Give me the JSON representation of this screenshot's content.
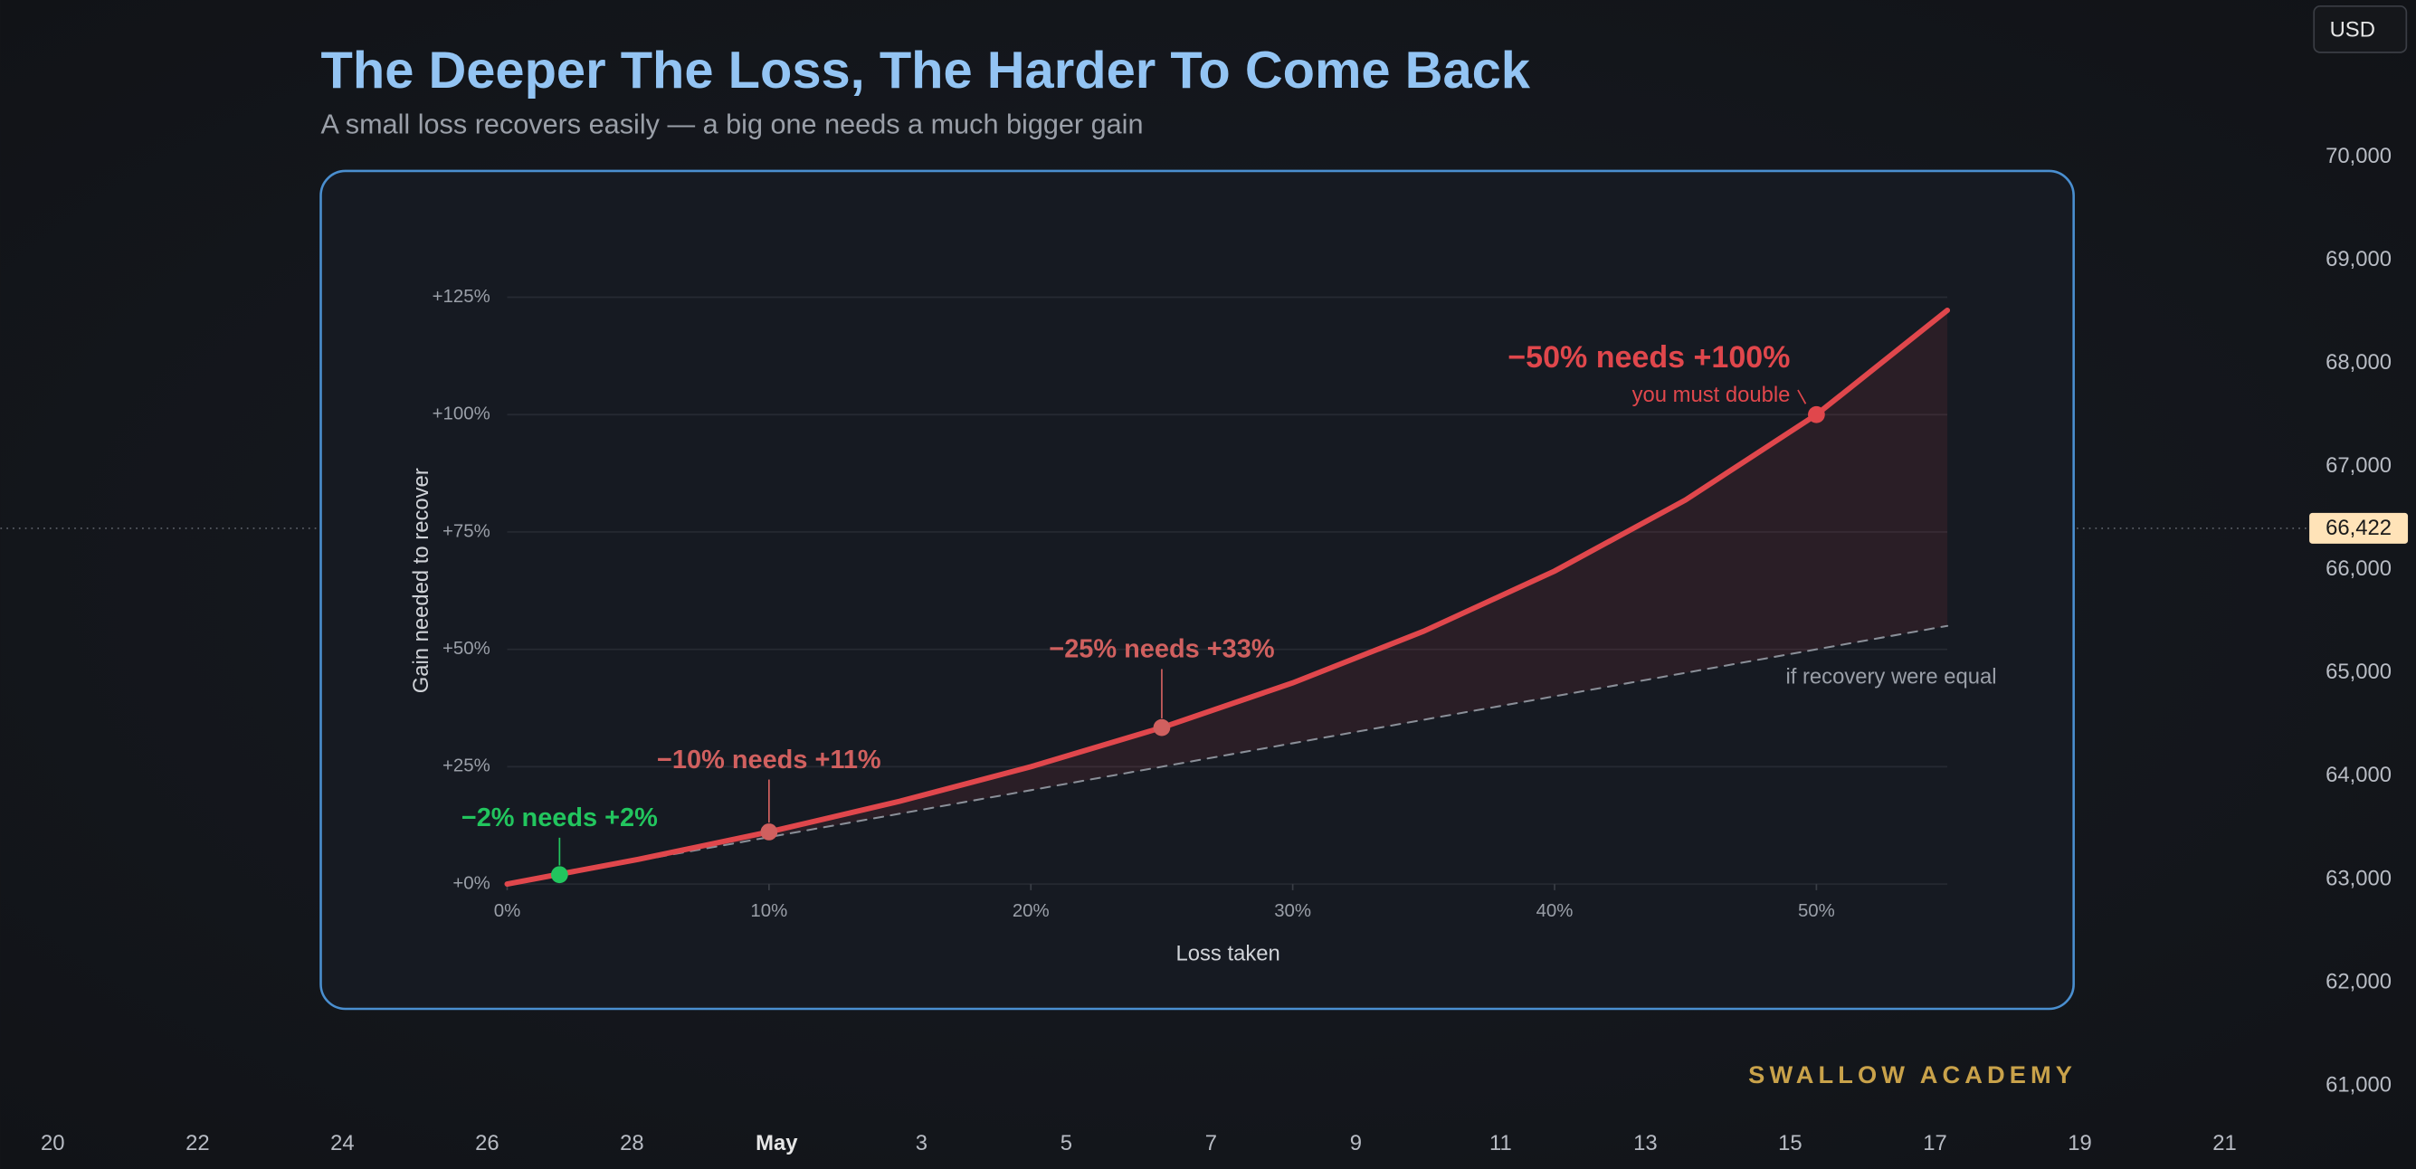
{
  "chart_data": {
    "type": "line",
    "title": "The Deeper The Loss, The Harder To Come Back",
    "subtitle": "A small loss recovers easily — a big one needs a much bigger gain",
    "x_label": "Loss taken",
    "y_label": "Gain needed to recover",
    "x": [
      0,
      5,
      10,
      15,
      20,
      25,
      30,
      35,
      40,
      45,
      50,
      55
    ],
    "series": [
      {
        "color": "#e0474c",
        "values": [
          0,
          5.26,
          11.11,
          17.65,
          25,
          33.33,
          42.86,
          53.85,
          66.67,
          81.82,
          100,
          122.22
        ]
      },
      {
        "name": "if recovery were equal",
        "color": "#8a8f98",
        "dashed": true,
        "values": [
          0,
          5,
          10,
          15,
          20,
          25,
          30,
          35,
          40,
          45,
          50,
          55
        ]
      }
    ],
    "xlim": [
      0,
      55
    ],
    "xticks": [
      {
        "value": 0,
        "label": "0%"
      },
      {
        "value": 10,
        "label": "10%"
      },
      {
        "value": 20,
        "label": "20%"
      },
      {
        "value": 30,
        "label": "30%"
      },
      {
        "value": 40,
        "label": "40%"
      },
      {
        "value": 50,
        "label": "50%"
      }
    ],
    "ylim": [
      0,
      125
    ],
    "yticks": [
      {
        "value": 0,
        "label": "+0%"
      },
      {
        "value": 25,
        "label": "+25%"
      },
      {
        "value": 50,
        "label": "+50%"
      },
      {
        "value": 75,
        "label": "+75%"
      },
      {
        "value": 100,
        "label": "+100%"
      },
      {
        "value": 125,
        "label": "+125%"
      }
    ],
    "grid": true,
    "annotations": [
      {
        "x": 2,
        "y": 2,
        "label": "−2% needs +2%",
        "color": "#22c55e"
      },
      {
        "x": 10,
        "y": 11.11,
        "label": "−10% needs +11%",
        "color": "#d0605f"
      },
      {
        "x": 25,
        "y": 33.33,
        "label": "−25% needs +33%",
        "color": "#d0605f"
      },
      {
        "x": 50,
        "y": 100,
        "label": "−50% needs +100%",
        "note": "you must double",
        "color": "#e0474c"
      }
    ]
  },
  "brand": "SWALLOW ACADEMY",
  "currency": "USD",
  "current_price": "66,422",
  "price_axis": [
    "70,000",
    "69,000",
    "68,000",
    "67,000",
    "66,000",
    "65,000",
    "64,000",
    "63,000",
    "62,000",
    "61,000"
  ],
  "time_axis": [
    "20",
    "22",
    "24",
    "26",
    "28",
    "May",
    "3",
    "5",
    "7",
    "9",
    "11",
    "13",
    "15",
    "17",
    "19",
    "21"
  ]
}
